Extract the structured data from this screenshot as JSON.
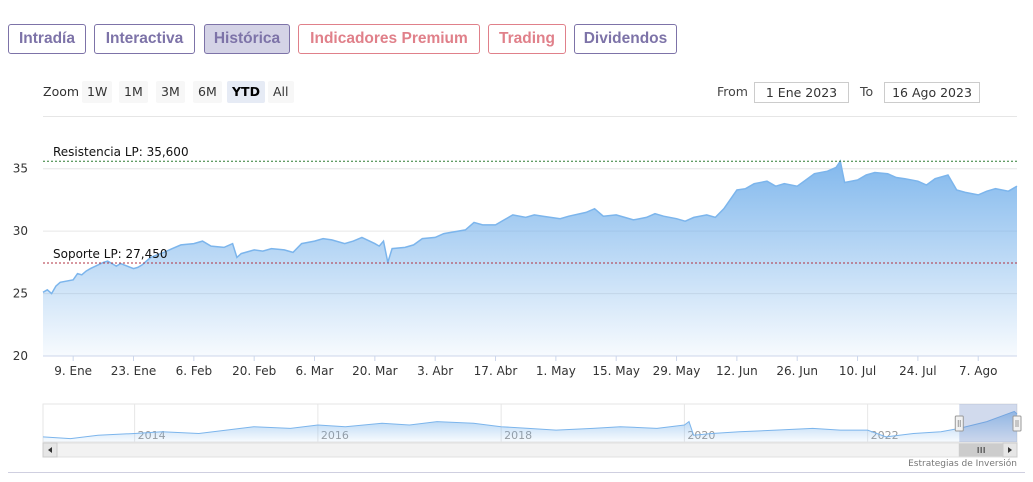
{
  "tabs": [
    {
      "label": "Intradía",
      "style": "normal"
    },
    {
      "label": "Interactiva",
      "style": "normal"
    },
    {
      "label": "Histórica",
      "style": "active"
    },
    {
      "label": "Indicadores Premium",
      "style": "premium"
    },
    {
      "label": "Trading",
      "style": "premium"
    },
    {
      "label": "Dividendos",
      "style": "normal"
    }
  ],
  "zoom": {
    "label": "Zoom",
    "buttons": [
      "1W",
      "1M",
      "3M",
      "6M",
      "YTD",
      "All"
    ],
    "selected": "YTD"
  },
  "range": {
    "from_label": "From",
    "from_value": "1 Ene 2023",
    "to_label": "To",
    "to_value": "16 Ago 2023"
  },
  "credit": "Estrategias de Inversión",
  "chart_data": {
    "type": "area",
    "title": "",
    "xlabel": "",
    "ylabel": "",
    "ylim": [
      20,
      36.5
    ],
    "yticks": [
      20,
      25,
      30,
      35
    ],
    "grid": true,
    "x_ticks": [
      "9. Ene",
      "23. Ene",
      "6. Feb",
      "20. Feb",
      "6. Mar",
      "20. Mar",
      "3. Abr",
      "17. Abr",
      "1. May",
      "15. May",
      "29. May",
      "12. Jun",
      "26. Jun",
      "10. Jul",
      "24. Jul",
      "7. Ago"
    ],
    "x_start": "2023-01-02",
    "x_end": "2023-08-16",
    "series": [
      {
        "name": "",
        "color": "#7cb5ec",
        "points": [
          [
            "2023-01-02",
            25.1
          ],
          [
            "2023-01-03",
            25.3
          ],
          [
            "2023-01-04",
            25.0
          ],
          [
            "2023-01-05",
            25.6
          ],
          [
            "2023-01-06",
            25.9
          ],
          [
            "2023-01-09",
            26.1
          ],
          [
            "2023-01-10",
            26.6
          ],
          [
            "2023-01-11",
            26.5
          ],
          [
            "2023-01-12",
            26.8
          ],
          [
            "2023-01-13",
            27.0
          ],
          [
            "2023-01-16",
            27.5
          ],
          [
            "2023-01-17",
            27.6
          ],
          [
            "2023-01-18",
            27.4
          ],
          [
            "2023-01-19",
            27.2
          ],
          [
            "2023-01-20",
            27.4
          ],
          [
            "2023-01-23",
            27.0
          ],
          [
            "2023-01-24",
            27.1
          ],
          [
            "2023-01-25",
            27.3
          ],
          [
            "2023-01-26",
            27.6
          ],
          [
            "2023-01-27",
            27.9
          ],
          [
            "2023-01-30",
            28.3
          ],
          [
            "2023-02-01",
            28.6
          ],
          [
            "2023-02-03",
            28.9
          ],
          [
            "2023-02-06",
            29.0
          ],
          [
            "2023-02-08",
            29.2
          ],
          [
            "2023-02-10",
            28.8
          ],
          [
            "2023-02-13",
            28.7
          ],
          [
            "2023-02-15",
            29.0
          ],
          [
            "2023-02-16",
            27.9
          ],
          [
            "2023-02-17",
            28.2
          ],
          [
            "2023-02-20",
            28.5
          ],
          [
            "2023-02-22",
            28.4
          ],
          [
            "2023-02-24",
            28.6
          ],
          [
            "2023-02-27",
            28.5
          ],
          [
            "2023-03-01",
            28.3
          ],
          [
            "2023-03-03",
            29.0
          ],
          [
            "2023-03-06",
            29.2
          ],
          [
            "2023-03-08",
            29.4
          ],
          [
            "2023-03-10",
            29.3
          ],
          [
            "2023-03-13",
            29.0
          ],
          [
            "2023-03-15",
            29.2
          ],
          [
            "2023-03-17",
            29.5
          ],
          [
            "2023-03-20",
            29.0
          ],
          [
            "2023-03-21",
            28.8
          ],
          [
            "2023-03-22",
            29.2
          ],
          [
            "2023-03-23",
            27.5
          ],
          [
            "2023-03-24",
            28.6
          ],
          [
            "2023-03-27",
            28.7
          ],
          [
            "2023-03-29",
            28.9
          ],
          [
            "2023-03-31",
            29.4
          ],
          [
            "2023-04-03",
            29.5
          ],
          [
            "2023-04-05",
            29.8
          ],
          [
            "2023-04-10",
            30.1
          ],
          [
            "2023-04-12",
            30.7
          ],
          [
            "2023-04-14",
            30.5
          ],
          [
            "2023-04-17",
            30.5
          ],
          [
            "2023-04-19",
            30.9
          ],
          [
            "2023-04-21",
            31.3
          ],
          [
            "2023-04-24",
            31.1
          ],
          [
            "2023-04-26",
            31.3
          ],
          [
            "2023-04-28",
            31.2
          ],
          [
            "2023-05-02",
            31.0
          ],
          [
            "2023-05-04",
            31.2
          ],
          [
            "2023-05-08",
            31.5
          ],
          [
            "2023-05-10",
            31.8
          ],
          [
            "2023-05-12",
            31.2
          ],
          [
            "2023-05-15",
            31.3
          ],
          [
            "2023-05-17",
            31.1
          ],
          [
            "2023-05-19",
            30.9
          ],
          [
            "2023-05-22",
            31.1
          ],
          [
            "2023-05-24",
            31.4
          ],
          [
            "2023-05-26",
            31.2
          ],
          [
            "2023-05-29",
            31.0
          ],
          [
            "2023-05-31",
            30.8
          ],
          [
            "2023-06-02",
            31.1
          ],
          [
            "2023-06-05",
            31.3
          ],
          [
            "2023-06-07",
            31.1
          ],
          [
            "2023-06-09",
            31.8
          ],
          [
            "2023-06-12",
            33.3
          ],
          [
            "2023-06-14",
            33.4
          ],
          [
            "2023-06-16",
            33.8
          ],
          [
            "2023-06-19",
            34.0
          ],
          [
            "2023-06-21",
            33.6
          ],
          [
            "2023-06-23",
            33.8
          ],
          [
            "2023-06-26",
            33.6
          ],
          [
            "2023-06-28",
            34.1
          ],
          [
            "2023-06-30",
            34.6
          ],
          [
            "2023-07-03",
            34.8
          ],
          [
            "2023-07-05",
            35.1
          ],
          [
            "2023-07-06",
            35.6
          ],
          [
            "2023-07-07",
            33.9
          ],
          [
            "2023-07-10",
            34.1
          ],
          [
            "2023-07-12",
            34.5
          ],
          [
            "2023-07-14",
            34.7
          ],
          [
            "2023-07-17",
            34.6
          ],
          [
            "2023-07-19",
            34.3
          ],
          [
            "2023-07-21",
            34.2
          ],
          [
            "2023-07-24",
            34.0
          ],
          [
            "2023-07-26",
            33.7
          ],
          [
            "2023-07-28",
            34.2
          ],
          [
            "2023-07-31",
            34.5
          ],
          [
            "2023-08-02",
            33.3
          ],
          [
            "2023-08-04",
            33.1
          ],
          [
            "2023-08-07",
            32.9
          ],
          [
            "2023-08-09",
            33.2
          ],
          [
            "2023-08-11",
            33.4
          ],
          [
            "2023-08-14",
            33.2
          ],
          [
            "2023-08-16",
            33.6
          ]
        ]
      }
    ],
    "annotations": [
      {
        "label": "Resistencia LP: 35,600",
        "value": 35.6,
        "color": "#2e7d32"
      },
      {
        "label": "Soporte LP: 27,450",
        "value": 27.45,
        "color": "#b03040"
      }
    ],
    "navigator": {
      "year_labels": [
        "2014",
        "2016",
        "2018",
        "2020",
        "2022"
      ],
      "points": [
        [
          2013.0,
          20.0
        ],
        [
          2013.3,
          19.0
        ],
        [
          2013.6,
          21.0
        ],
        [
          2014.0,
          22.0
        ],
        [
          2014.3,
          23.0
        ],
        [
          2014.7,
          22.0
        ],
        [
          2015.0,
          24.0
        ],
        [
          2015.3,
          26.0
        ],
        [
          2015.7,
          25.0
        ],
        [
          2016.0,
          27.0
        ],
        [
          2016.3,
          26.0
        ],
        [
          2016.7,
          28.0
        ],
        [
          2017.0,
          27.0
        ],
        [
          2017.3,
          29.0
        ],
        [
          2017.7,
          28.0
        ],
        [
          2018.0,
          26.0
        ],
        [
          2018.3,
          25.0
        ],
        [
          2018.6,
          24.0
        ],
        [
          2019.0,
          25.0
        ],
        [
          2019.3,
          26.0
        ],
        [
          2019.7,
          25.0
        ],
        [
          2020.0,
          27.0
        ],
        [
          2020.05,
          29.0
        ],
        [
          2020.1,
          21.0
        ],
        [
          2020.3,
          22.0
        ],
        [
          2020.6,
          23.0
        ],
        [
          2021.0,
          24.0
        ],
        [
          2021.4,
          25.0
        ],
        [
          2021.7,
          24.0
        ],
        [
          2022.0,
          24.0
        ],
        [
          2022.2,
          20.0
        ],
        [
          2022.5,
          22.0
        ],
        [
          2022.8,
          23.0
        ],
        [
          2023.0,
          25.0
        ],
        [
          2023.3,
          29.0
        ],
        [
          2023.5,
          33.0
        ],
        [
          2023.6,
          35.0
        ],
        [
          2023.63,
          33.5
        ]
      ],
      "range_start": 2023.0,
      "range_end": 2023.63
    }
  }
}
